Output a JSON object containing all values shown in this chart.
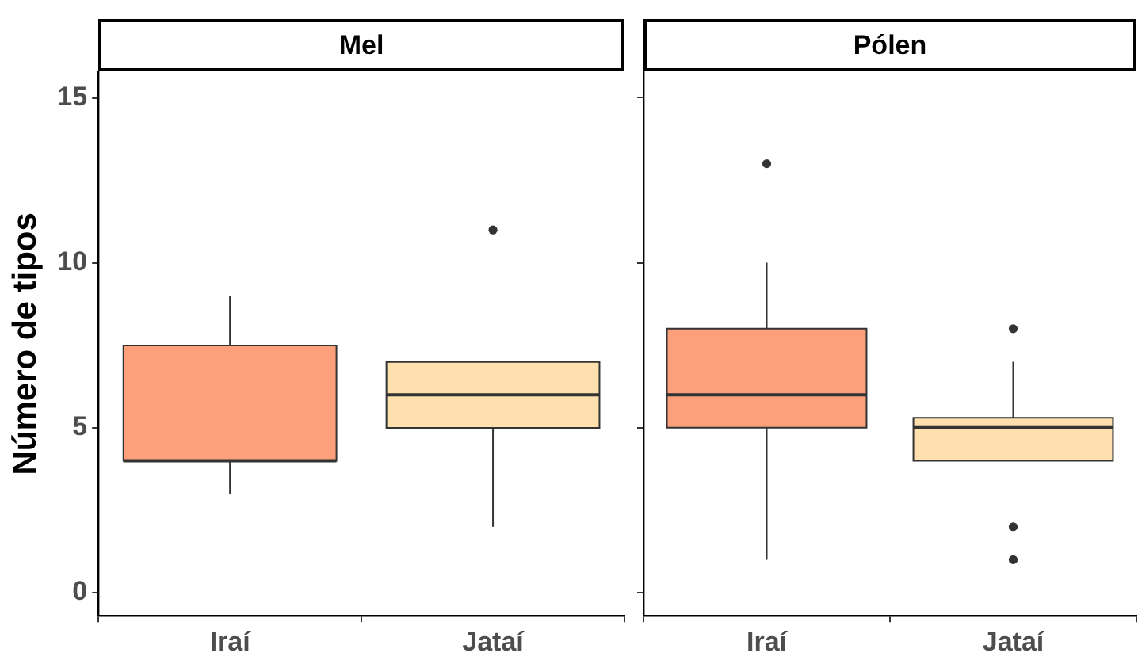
{
  "chart_data": [
    {
      "type": "box",
      "title": "Mel",
      "ylabel": "Número de tipos",
      "categories": [
        "Iraí",
        "Jataí"
      ],
      "colors": [
        "#fca07c",
        "#fde0ad"
      ],
      "boxes": [
        {
          "low": 3,
          "q1": 4,
          "median": 4,
          "q3": 7.5,
          "high": 9
        },
        {
          "low": 2,
          "q1": 5,
          "median": 6,
          "q3": 7,
          "high": 7,
          "outliers": [
            11
          ]
        }
      ],
      "ylim": [
        -0.7,
        15.8
      ],
      "yticks": [
        0,
        5,
        10,
        15
      ],
      "grid": false
    },
    {
      "type": "box",
      "title": "Pólen",
      "categories": [
        "Iraí",
        "Jataí"
      ],
      "colors": [
        "#fca07c",
        "#fde0ad"
      ],
      "boxes": [
        {
          "low": 1,
          "q1": 5,
          "median": 6,
          "q3": 8,
          "high": 10,
          "outliers": [
            13
          ]
        },
        {
          "low": 4,
          "q1": 4,
          "median": 5,
          "q3": 5.3,
          "high": 7,
          "outliers": [
            8,
            2,
            1
          ]
        }
      ],
      "ylim": [
        -0.7,
        15.8
      ],
      "yticks": [
        0,
        5,
        10,
        15
      ],
      "grid": false,
      "tick_labels": "x"
    }
  ]
}
